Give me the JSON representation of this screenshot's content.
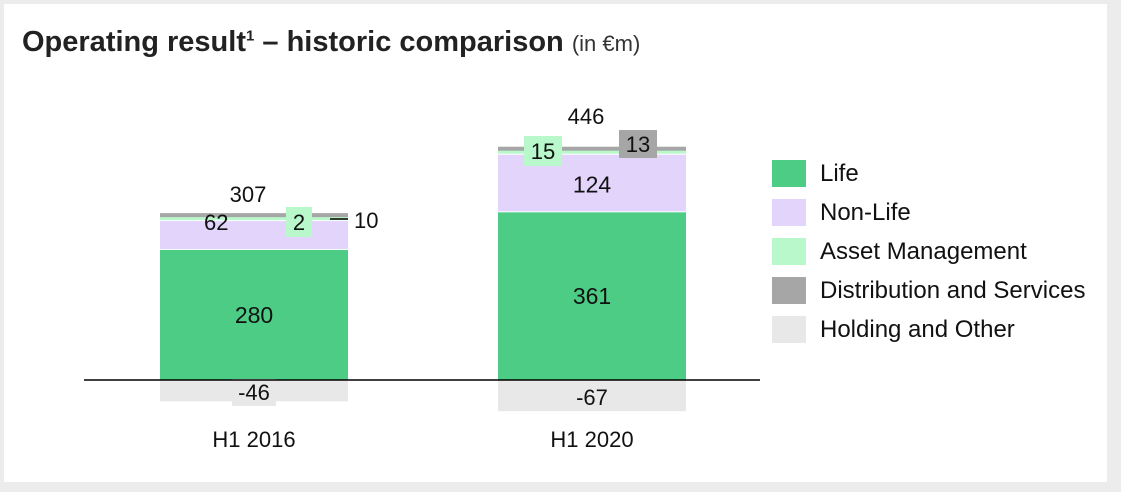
{
  "header": {
    "title": "Operating result",
    "superscript": "1",
    "title_rest": " – historic comparison",
    "unit": "(in €m)"
  },
  "colors": {
    "life": "#4dcc85",
    "non_life": "#e2d4fb",
    "asset_management": "#b8f8cb",
    "distribution_and_services": "#a6a6a6",
    "holding_and_other": "#e8e8e8",
    "baseline": "#000000"
  },
  "chart_data": {
    "type": "bar",
    "stacked": true,
    "categories": [
      "H1 2016",
      "H1 2020"
    ],
    "series": [
      {
        "name": "Life",
        "key": "life",
        "values": [
          280,
          361
        ]
      },
      {
        "name": "Non-Life",
        "key": "non_life",
        "values": [
          62,
          124
        ]
      },
      {
        "name": "Asset Management",
        "key": "asset_management",
        "values": [
          2,
          15
        ]
      },
      {
        "name": "Distribution and Services",
        "key": "distribution_and_services",
        "values": [
          10,
          13
        ]
      },
      {
        "name": "Holding and Other",
        "key": "holding_and_other",
        "values": [
          -46,
          -67
        ]
      }
    ],
    "totals": [
      307,
      446
    ],
    "value_labels": [
      {
        "life": "280",
        "non_life": "62",
        "asset_management": "2",
        "distribution_and_services": "10",
        "holding_and_other": "-46",
        "total": "307"
      },
      {
        "life": "361",
        "non_life": "124",
        "asset_management": "15",
        "distribution_and_services": "13",
        "holding_and_other": "-67",
        "total": "446"
      }
    ],
    "title": "Operating result1 – historic comparison (in €m)",
    "xlabel": "",
    "ylabel": "",
    "legend_position": "right",
    "grid": false
  }
}
